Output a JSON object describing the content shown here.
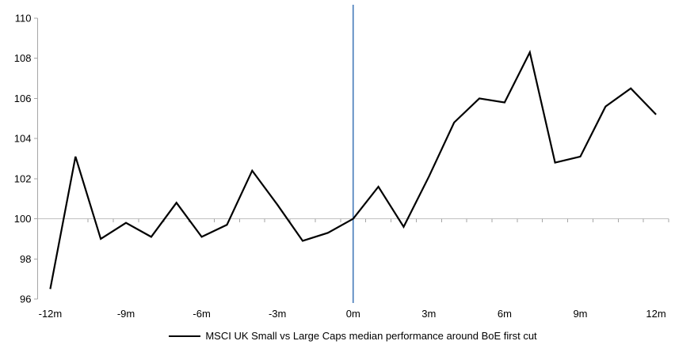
{
  "chart_data": {
    "type": "line",
    "x_months": [
      -12,
      -11,
      -10,
      -9,
      -8,
      -7,
      -6,
      -5,
      -4,
      -3,
      -2,
      -1,
      0,
      1,
      2,
      3,
      4,
      5,
      6,
      7,
      8,
      9,
      10,
      11,
      12
    ],
    "series": [
      {
        "name": "MSCI UK Small vs Large Caps median performance around BoE first cut",
        "color": "#000000",
        "values": [
          96.5,
          103.1,
          99.0,
          99.8,
          99.1,
          100.8,
          99.1,
          99.7,
          102.4,
          100.7,
          98.9,
          99.3,
          100.0,
          101.6,
          99.6,
          102.1,
          104.8,
          106.0,
          105.8,
          108.3,
          102.8,
          103.1,
          105.6,
          106.5,
          105.2
        ]
      }
    ],
    "x_tick_labels": [
      "-12m",
      "-9m",
      "-6m",
      "-3m",
      "0m",
      "3m",
      "6m",
      "9m",
      "12m"
    ],
    "x_tick_months": [
      -12,
      -9,
      -6,
      -3,
      0,
      3,
      6,
      9,
      12
    ],
    "y_ticks": [
      96,
      98,
      100,
      102,
      104,
      106,
      108,
      110
    ],
    "ylim": [
      96,
      110
    ],
    "baseline_value": 100,
    "event_line": {
      "month": 0,
      "color": "#4f81bd"
    },
    "axis_color": "#a6a6a6",
    "baseline_color": "#c0c0c0",
    "legend_position": "bottom-center",
    "grid": "off"
  }
}
